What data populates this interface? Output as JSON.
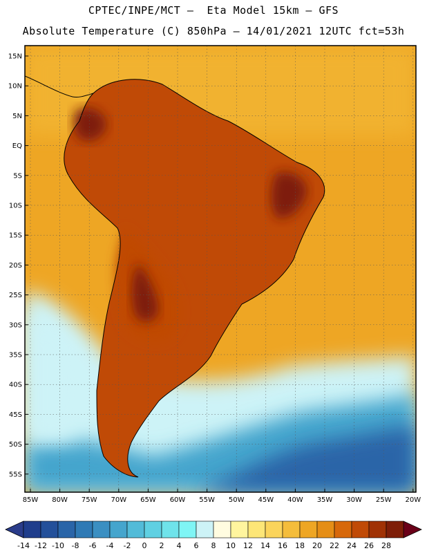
{
  "header": {
    "line1": "CPTEC/INPE/MCT –  Eta Model 15km – GFS",
    "line2": "Absolute Temperature (C) 850hPa – 14/01/2021 12UTC fct=53h"
  },
  "map": {
    "lat_labels": [
      "15N",
      "10N",
      "5N",
      "EQ",
      "5S",
      "10S",
      "15S",
      "20S",
      "25S",
      "30S",
      "35S",
      "40S",
      "45S",
      "50S",
      "55S"
    ],
    "lon_labels": [
      "85W",
      "80W",
      "75W",
      "70W",
      "65W",
      "60W",
      "55W",
      "50W",
      "45W",
      "40W",
      "35W",
      "30W",
      "25W",
      "20W"
    ]
  },
  "colorbar": {
    "ticks": [
      "-14",
      "-12",
      "-10",
      "-8",
      "-6",
      "-4",
      "-2",
      "0",
      "2",
      "4",
      "6",
      "8",
      "10",
      "12",
      "14",
      "16",
      "18",
      "20",
      "22",
      "24",
      "26",
      "28"
    ],
    "colors": [
      "#1f3d8c",
      "#23509a",
      "#2a65a8",
      "#2f7ab5",
      "#3a8fc2",
      "#45a5cd",
      "#52bbd8",
      "#5fd0e2",
      "#6fe3ea",
      "#7ff5f5",
      "#cdf3f7",
      "#fffce0",
      "#fff59e",
      "#fde677",
      "#fbd45b",
      "#f4bd3b",
      "#eea624",
      "#e58e16",
      "#d7680a",
      "#c04a06",
      "#a03205",
      "#7e1e08"
    ],
    "under_color": "#2a3c8a",
    "over_color": "#6a0018"
  },
  "regions": {
    "ocean_warm": "#eea624",
    "ocean_mild": "#f4bd3b",
    "land_hot": "#c04a06",
    "land_very_hot": "#7e1e08",
    "cool": "#cdf3f7",
    "cold": "#45a5cd",
    "very_cold": "#2a65a8",
    "coast": "#000000"
  }
}
